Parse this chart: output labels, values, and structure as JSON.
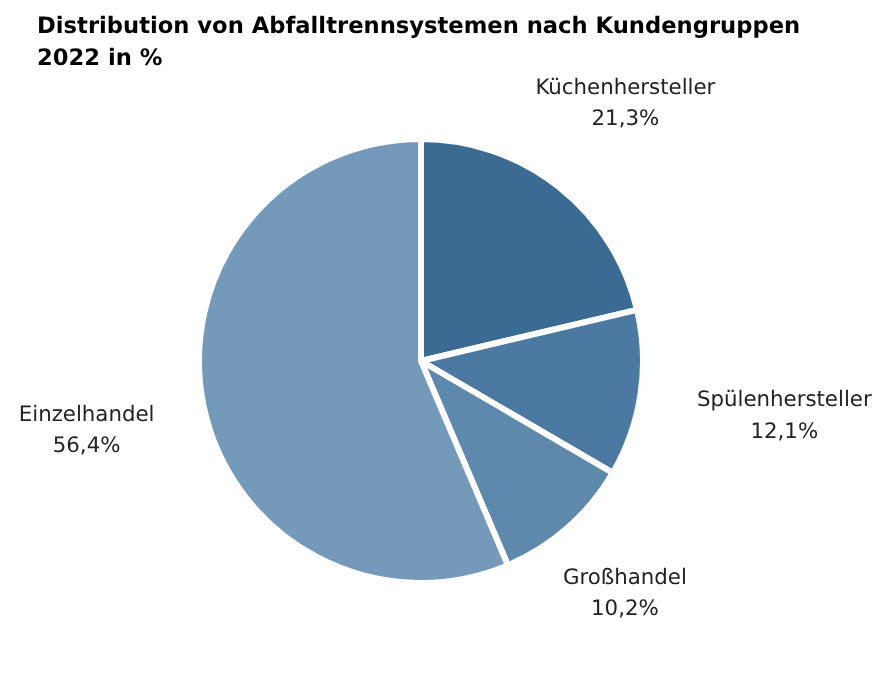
{
  "chart_data": {
    "type": "pie",
    "title": "Distribution von Abfalltrennsystemen nach Kundengruppen\n2022 in %",
    "categories": [
      "Küchenhersteller",
      "Spülenhersteller",
      "Großhandel",
      "Einzelhandel"
    ],
    "values": [
      21.3,
      12.1,
      10.2,
      56.4
    ],
    "value_labels": [
      "21,3%",
      "12,1%",
      "10,2%",
      "56,4%"
    ],
    "colors": [
      "#3b6a93",
      "#4c79a2",
      "#5f88ad",
      "#7599b9"
    ]
  }
}
